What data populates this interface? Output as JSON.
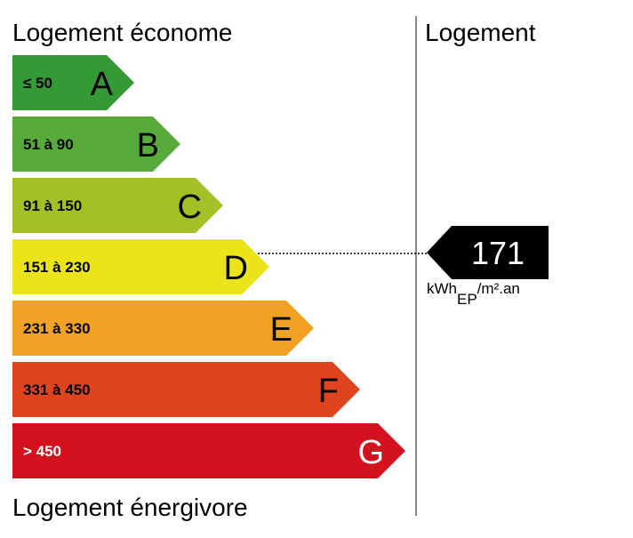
{
  "header": {
    "left": "Logement économe",
    "right": "Logement"
  },
  "footer": "Logement énergivore",
  "bands": [
    {
      "range": "≤ 50",
      "letter": "A",
      "color": "#339a35"
    },
    {
      "range": "51 à 90",
      "letter": "B",
      "color": "#58ab3a"
    },
    {
      "range": "91 à 150",
      "letter": "C",
      "color": "#a2c127"
    },
    {
      "range": "151 à 230",
      "letter": "D",
      "color": "#ebe41b"
    },
    {
      "range": "231 à 330",
      "letter": "E",
      "color": "#f1a123"
    },
    {
      "range": "331 à 450",
      "letter": "F",
      "color": "#e0441f"
    },
    {
      "range": "> 450",
      "letter": "G",
      "color": "#d3111f"
    }
  ],
  "rating": {
    "value": 171,
    "unit": "kWh",
    "unit_sub": "EP",
    "unit_sup": "/m².an"
  }
}
